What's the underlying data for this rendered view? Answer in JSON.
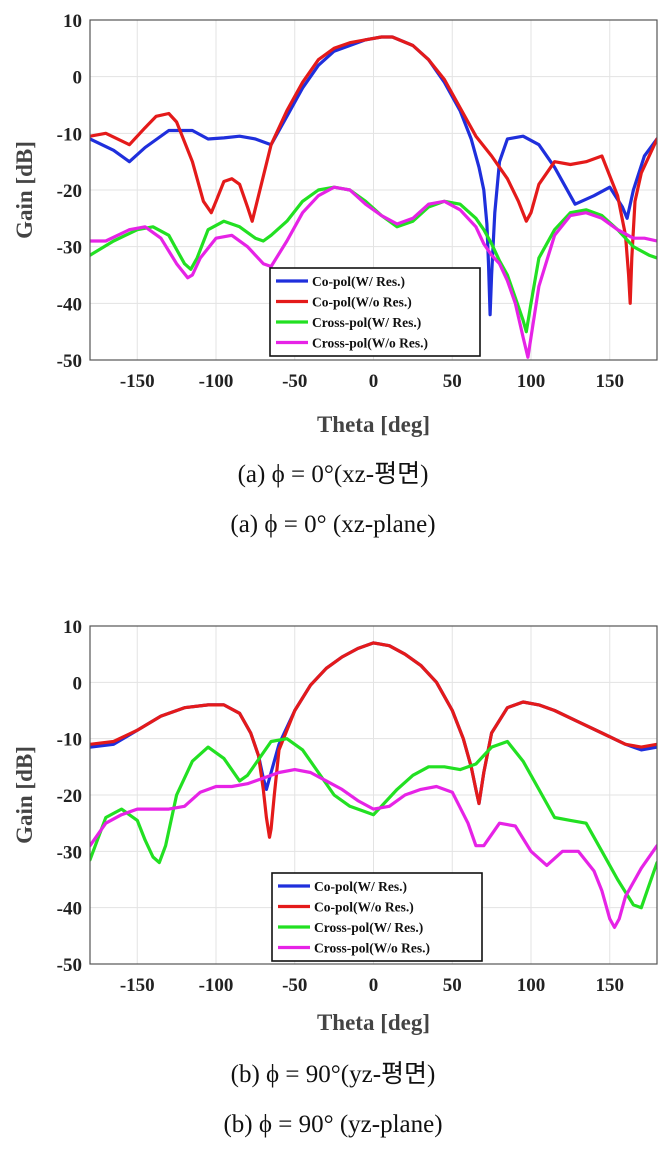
{
  "chart_data": [
    {
      "type": "line",
      "panel": "a",
      "xlabel": "Theta [deg]",
      "ylabel": "Gain [dB]",
      "xlim": [
        -180,
        180
      ],
      "ylim": [
        -50,
        10
      ],
      "xticks": [
        -150,
        -100,
        -50,
        0,
        50,
        100,
        150
      ],
      "yticks": [
        10,
        0,
        -10,
        -20,
        -30,
        -40,
        -50
      ],
      "grid": true,
      "legend_position": "bottom-right",
      "caption_lines": [
        "(a)  ϕ = 0°(xz-평면)",
        "(a)  ϕ = 0°  (xz-plane)"
      ],
      "series": [
        {
          "name": "Co-pol(W/ Res.)",
          "color": "#1f2fdc",
          "x": [
            -180,
            -165,
            -155,
            -145,
            -130,
            -115,
            -105,
            -95,
            -85,
            -75,
            -65,
            -55,
            -45,
            -35,
            -25,
            -15,
            -5,
            5,
            12,
            25,
            35,
            45,
            55,
            62,
            67,
            70,
            72,
            73,
            74,
            75,
            77,
            80,
            85,
            95,
            105,
            115,
            128,
            140,
            150,
            158,
            161,
            165,
            172,
            180
          ],
          "y": [
            -11,
            -13,
            -15,
            -12.5,
            -9.5,
            -9.5,
            -11,
            -10.8,
            -10.5,
            -11,
            -12,
            -7,
            -2,
            2,
            4.5,
            5.5,
            6.5,
            7,
            7,
            5.5,
            3,
            -1,
            -6,
            -11,
            -16,
            -20,
            -26,
            -33,
            -42,
            -35,
            -24,
            -15,
            -11,
            -10.5,
            -12,
            -16,
            -22.5,
            -21,
            -19.5,
            -23,
            -25,
            -20,
            -14,
            -11
          ]
        },
        {
          "name": "Co-pol(W/o Res.)",
          "color": "#e41a1a",
          "x": [
            -180,
            -170,
            -155,
            -145,
            -138,
            -130,
            -125,
            -115,
            -108,
            -103,
            -100,
            -95,
            -90,
            -85,
            -80,
            -77,
            -73,
            -65,
            -55,
            -45,
            -35,
            -25,
            -15,
            -5,
            5,
            12,
            25,
            35,
            45,
            55,
            65,
            75,
            85,
            92,
            97,
            100,
            105,
            115,
            125,
            135,
            145,
            155,
            160,
            162,
            163,
            164,
            166,
            170,
            180
          ],
          "y": [
            -10.5,
            -10,
            -12,
            -9,
            -7,
            -6.5,
            -8,
            -15,
            -22,
            -24,
            -22,
            -18.5,
            -18,
            -19,
            -23,
            -25.5,
            -21,
            -12,
            -6,
            -1,
            3,
            5,
            6,
            6.5,
            7,
            7,
            5.5,
            3,
            -0.5,
            -5.5,
            -10.5,
            -14,
            -18,
            -22,
            -25.5,
            -24,
            -19,
            -15,
            -15.5,
            -15,
            -14,
            -21,
            -28,
            -35,
            -40,
            -32,
            -22,
            -17,
            -11
          ]
        },
        {
          "name": "Cross-pol(W/ Res.)",
          "color": "#22e022",
          "x": [
            -180,
            -165,
            -150,
            -140,
            -130,
            -125,
            -120,
            -116,
            -112,
            -105,
            -95,
            -85,
            -75,
            -70,
            -65,
            -55,
            -45,
            -35,
            -25,
            -15,
            -5,
            5,
            15,
            25,
            35,
            45,
            55,
            65,
            70,
            75,
            80,
            85,
            90,
            95,
            97,
            100,
            105,
            115,
            125,
            135,
            145,
            155,
            165,
            175,
            180
          ],
          "y": [
            -31.5,
            -29,
            -27,
            -26.5,
            -28,
            -30.5,
            -33,
            -34,
            -32,
            -27,
            -25.5,
            -26.5,
            -28.5,
            -29,
            -28,
            -25.5,
            -22,
            -20,
            -19.5,
            -20,
            -22,
            -24.5,
            -26.5,
            -25.5,
            -23,
            -22,
            -22.5,
            -25,
            -27,
            -29.5,
            -32.5,
            -35,
            -39,
            -43,
            -45,
            -40,
            -32,
            -27,
            -24,
            -23.5,
            -24.5,
            -27,
            -30,
            -31.5,
            -32
          ]
        },
        {
          "name": "Cross-pol(W/o Res.)",
          "color": "#e623e6",
          "x": [
            -180,
            -170,
            -155,
            -145,
            -135,
            -125,
            -118,
            -115,
            -110,
            -100,
            -90,
            -80,
            -70,
            -65,
            -55,
            -45,
            -35,
            -25,
            -15,
            -5,
            5,
            15,
            25,
            35,
            45,
            55,
            65,
            70,
            75,
            80,
            85,
            90,
            95,
            98,
            100,
            105,
            115,
            125,
            135,
            145,
            155,
            165,
            172,
            180
          ],
          "y": [
            -29,
            -29,
            -27,
            -26.5,
            -28.5,
            -33,
            -35.5,
            -35,
            -32,
            -28.5,
            -28,
            -30,
            -33,
            -33.5,
            -29,
            -24,
            -21,
            -19.5,
            -20,
            -22.5,
            -24.5,
            -26,
            -25,
            -22.5,
            -22,
            -23.5,
            -26.5,
            -29.5,
            -31.5,
            -33,
            -36,
            -40,
            -46,
            -49.5,
            -46,
            -37,
            -28,
            -24.5,
            -24,
            -25,
            -27,
            -28.5,
            -28.5,
            -29
          ]
        }
      ]
    },
    {
      "type": "line",
      "panel": "b",
      "xlabel": "Theta [deg]",
      "ylabel": "Gain [dB]",
      "xlim": [
        -180,
        180
      ],
      "ylim": [
        -50,
        10
      ],
      "xticks": [
        -150,
        -100,
        -50,
        0,
        50,
        100,
        150
      ],
      "yticks": [
        10,
        0,
        -10,
        -20,
        -30,
        -40,
        -50
      ],
      "grid": true,
      "legend_position": "bottom-right",
      "caption_lines": [
        "(b)  ϕ = 90°(yz-평면)",
        "(b)  ϕ = 90°  (yz-plane)"
      ],
      "series": [
        {
          "name": "Co-pol(W/ Res.)",
          "color": "#1f2fdc",
          "x": [
            -180,
            -165,
            -150,
            -135,
            -120,
            -105,
            -95,
            -85,
            -78,
            -73,
            -70,
            -68,
            -65,
            -60,
            -50,
            -40,
            -30,
            -20,
            -10,
            0,
            10,
            20,
            30,
            40,
            50,
            57,
            62,
            65,
            67,
            70,
            75,
            85,
            95,
            105,
            115,
            130,
            145,
            160,
            170,
            180
          ],
          "y": [
            -11.5,
            -11,
            -8.5,
            -6,
            -4.5,
            -4,
            -4,
            -5.5,
            -9,
            -13,
            -17,
            -19,
            -16,
            -11,
            -5,
            -0.5,
            2.5,
            4.5,
            6,
            7,
            6.5,
            5,
            3,
            0,
            -5,
            -10,
            -15,
            -19,
            -21.5,
            -16,
            -9,
            -4.5,
            -3.5,
            -4,
            -5,
            -7,
            -9,
            -11,
            -12,
            -11.5
          ]
        },
        {
          "name": "Co-pol(W/o Res.)",
          "color": "#e41a1a",
          "x": [
            -180,
            -165,
            -150,
            -135,
            -120,
            -105,
            -95,
            -85,
            -78,
            -73,
            -70,
            -68,
            -66,
            -65,
            -63,
            -60,
            -50,
            -40,
            -30,
            -20,
            -10,
            0,
            10,
            20,
            30,
            40,
            50,
            57,
            62,
            65,
            67,
            70,
            75,
            85,
            95,
            105,
            115,
            130,
            145,
            160,
            170,
            180
          ],
          "y": [
            -11,
            -10.5,
            -8.5,
            -6,
            -4.5,
            -4,
            -4,
            -5.5,
            -9,
            -13,
            -19,
            -24,
            -27.5,
            -26,
            -20,
            -12,
            -5,
            -0.5,
            2.5,
            4.5,
            6,
            7,
            6.5,
            5,
            3,
            0,
            -5,
            -10,
            -15,
            -19,
            -21.5,
            -16,
            -9,
            -4.5,
            -3.5,
            -4,
            -5,
            -7,
            -9,
            -11,
            -11.5,
            -11
          ]
        },
        {
          "name": "Cross-pol(W/ Res.)",
          "color": "#22e022",
          "x": [
            -180,
            -170,
            -160,
            -150,
            -145,
            -140,
            -136,
            -132,
            -125,
            -115,
            -105,
            -95,
            -85,
            -80,
            -75,
            -65,
            -55,
            -45,
            -35,
            -25,
            -15,
            -5,
            0,
            5,
            15,
            25,
            35,
            45,
            55,
            65,
            75,
            85,
            95,
            105,
            115,
            125,
            135,
            145,
            155,
            165,
            170,
            175,
            180
          ],
          "y": [
            -31.5,
            -24,
            -22.5,
            -24.5,
            -28,
            -31,
            -32,
            -29,
            -20,
            -14,
            -11.5,
            -13.5,
            -17.5,
            -16.5,
            -14.5,
            -10.5,
            -10,
            -12,
            -16,
            -20,
            -22,
            -23,
            -23.5,
            -22,
            -19,
            -16.5,
            -15,
            -15,
            -15.5,
            -14.5,
            -11.5,
            -10.5,
            -14,
            -19,
            -24,
            -24.5,
            -25,
            -30,
            -35,
            -39.5,
            -40,
            -36,
            -32
          ]
        },
        {
          "name": "Cross-pol(W/o Res.)",
          "color": "#e623e6",
          "x": [
            -180,
            -170,
            -160,
            -150,
            -140,
            -130,
            -120,
            -110,
            -100,
            -90,
            -80,
            -70,
            -60,
            -50,
            -40,
            -30,
            -20,
            -10,
            0,
            10,
            20,
            30,
            40,
            50,
            60,
            65,
            70,
            80,
            90,
            100,
            110,
            120,
            130,
            140,
            145,
            150,
            153,
            156,
            160,
            170,
            180
          ],
          "y": [
            -29,
            -25,
            -23.5,
            -22.5,
            -22.5,
            -22.5,
            -22,
            -19.5,
            -18.5,
            -18.5,
            -18,
            -17,
            -16,
            -15.5,
            -16,
            -17.5,
            -19,
            -21,
            -22.5,
            -22,
            -20,
            -19,
            -18.5,
            -19.5,
            -25,
            -29,
            -29,
            -25,
            -25.5,
            -30,
            -32.5,
            -30,
            -30,
            -33.5,
            -37,
            -42,
            -43.5,
            -42,
            -38,
            -33,
            -29
          ]
        }
      ]
    }
  ]
}
